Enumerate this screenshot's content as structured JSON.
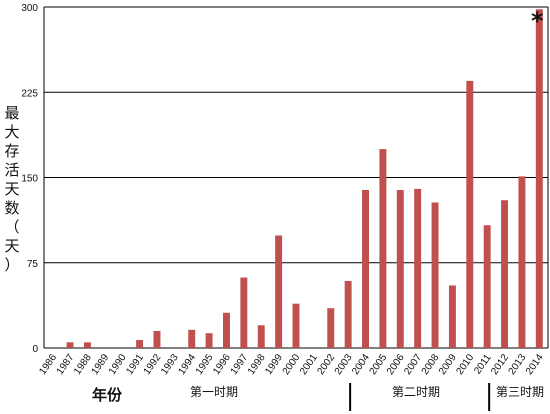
{
  "chart_data": {
    "type": "bar",
    "categories": [
      "1986",
      "1987",
      "1988",
      "1989",
      "1990",
      "1991",
      "1992",
      "1993",
      "1994",
      "1995",
      "1996",
      "1997",
      "1998",
      "1999",
      "2000",
      "2001",
      "2002",
      "2003",
      "2004",
      "2005",
      "2006",
      "2007",
      "2008",
      "2009",
      "2010",
      "2011",
      "2012",
      "2013",
      "2014"
    ],
    "values": [
      0,
      5,
      5,
      0,
      0,
      7,
      15,
      0,
      16,
      13,
      31,
      62,
      20,
      99,
      39,
      0,
      35,
      59,
      139,
      175,
      139,
      140,
      128,
      55,
      235,
      108,
      130,
      151,
      298
    ],
    "ylabel": "最大存活天数（天）",
    "xlabel": "年份",
    "ylim": [
      0,
      300
    ],
    "yticks": [
      0,
      75,
      150,
      225,
      300
    ],
    "grid": true,
    "bar_color": "#c0504d",
    "annotation": "*",
    "periods": [
      "第一时期",
      "第二时期",
      "第三时期"
    ]
  }
}
